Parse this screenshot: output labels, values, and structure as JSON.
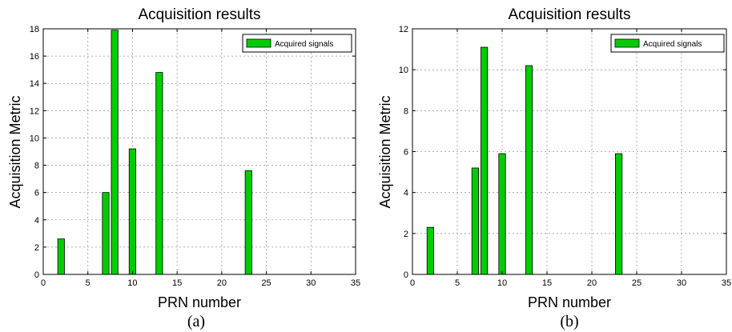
{
  "colors": {
    "bar": "#00cc00",
    "bar_edge": "#000000",
    "grid": "#999999",
    "axis": "#000000"
  },
  "chart_data": [
    {
      "type": "bar",
      "panel_label": "(a)",
      "title": "Acquisition results",
      "xlabel": "PRN number",
      "ylabel": "Acquisition Metric",
      "xlim": [
        0,
        35
      ],
      "ylim": [
        0,
        18
      ],
      "xticks": [
        0,
        5,
        10,
        15,
        20,
        25,
        30,
        35
      ],
      "yticks": [
        0,
        2,
        4,
        6,
        8,
        10,
        12,
        14,
        16,
        18
      ],
      "grid": true,
      "legend": {
        "position": "top-right",
        "entries": [
          "Acquired signals"
        ]
      },
      "series": [
        {
          "name": "Acquired signals",
          "x": [
            2,
            7,
            8,
            10,
            13,
            23
          ],
          "values": [
            2.6,
            6.0,
            17.9,
            9.2,
            14.8,
            7.6
          ]
        }
      ]
    },
    {
      "type": "bar",
      "panel_label": "(b)",
      "title": "Acquisition results",
      "xlabel": "PRN number",
      "ylabel": "Acquisition Metric",
      "xlim": [
        0,
        35
      ],
      "ylim": [
        0,
        12
      ],
      "xticks": [
        0,
        5,
        10,
        15,
        20,
        25,
        30,
        35
      ],
      "yticks": [
        0,
        2,
        4,
        6,
        8,
        10,
        12
      ],
      "grid": true,
      "legend": {
        "position": "top-right",
        "entries": [
          "Acquired signals"
        ]
      },
      "series": [
        {
          "name": "Acquired signals",
          "x": [
            2,
            7,
            8,
            10,
            13,
            23
          ],
          "values": [
            2.3,
            5.2,
            11.1,
            5.9,
            10.2,
            5.9
          ]
        }
      ]
    }
  ]
}
